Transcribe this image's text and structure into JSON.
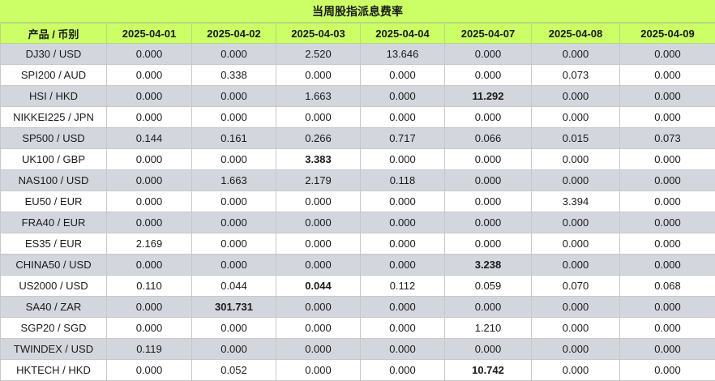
{
  "title": "当周股指派息费率",
  "header": {
    "product_label": "产品 / 币别",
    "dates": [
      "2025-04-01",
      "2025-04-02",
      "2025-04-03",
      "2025-04-04",
      "2025-04-07",
      "2025-04-08",
      "2025-04-09"
    ]
  },
  "rows": [
    {
      "product": "DJ30 / USD",
      "values": [
        "0.000",
        "0.000",
        "2.520",
        "13.646",
        "0.000",
        "0.000",
        "0.000"
      ],
      "bold": []
    },
    {
      "product": "SPI200 / AUD",
      "values": [
        "0.000",
        "0.338",
        "0.000",
        "0.000",
        "0.000",
        "0.073",
        "0.000"
      ],
      "bold": []
    },
    {
      "product": "HSI / HKD",
      "values": [
        "0.000",
        "0.000",
        "1.663",
        "0.000",
        "11.292",
        "0.000",
        "0.000"
      ],
      "bold": [
        4
      ]
    },
    {
      "product": "NIKKEI225 / JPN",
      "values": [
        "0.000",
        "0.000",
        "0.000",
        "0.000",
        "0.000",
        "0.000",
        "0.000"
      ],
      "bold": []
    },
    {
      "product": "SP500 / USD",
      "values": [
        "0.144",
        "0.161",
        "0.266",
        "0.717",
        "0.066",
        "0.015",
        "0.073"
      ],
      "bold": []
    },
    {
      "product": "UK100 / GBP",
      "values": [
        "0.000",
        "0.000",
        "3.383",
        "0.000",
        "0.000",
        "0.000",
        "0.000"
      ],
      "bold": [
        2
      ]
    },
    {
      "product": "NAS100 / USD",
      "values": [
        "0.000",
        "1.663",
        "2.179",
        "0.118",
        "0.000",
        "0.000",
        "0.000"
      ],
      "bold": []
    },
    {
      "product": "EU50 / EUR",
      "values": [
        "0.000",
        "0.000",
        "0.000",
        "0.000",
        "0.000",
        "3.394",
        "0.000"
      ],
      "bold": []
    },
    {
      "product": "FRA40 / EUR",
      "values": [
        "0.000",
        "0.000",
        "0.000",
        "0.000",
        "0.000",
        "0.000",
        "0.000"
      ],
      "bold": []
    },
    {
      "product": "ES35 / EUR",
      "values": [
        "2.169",
        "0.000",
        "0.000",
        "0.000",
        "0.000",
        "0.000",
        "0.000"
      ],
      "bold": []
    },
    {
      "product": "CHINA50 / USD",
      "values": [
        "0.000",
        "0.000",
        "0.000",
        "0.000",
        "3.238",
        "0.000",
        "0.000"
      ],
      "bold": [
        4
      ]
    },
    {
      "product": "US2000 / USD",
      "values": [
        "0.110",
        "0.044",
        "0.044",
        "0.112",
        "0.059",
        "0.070",
        "0.068"
      ],
      "bold": [
        2
      ]
    },
    {
      "product": "SA40 / ZAR",
      "values": [
        "0.000",
        "301.731",
        "0.000",
        "0.000",
        "0.000",
        "0.000",
        "0.000"
      ],
      "bold": [
        1
      ]
    },
    {
      "product": "SGP20 / SGD",
      "values": [
        "0.000",
        "0.000",
        "0.000",
        "0.000",
        "1.210",
        "0.000",
        "0.000"
      ],
      "bold": []
    },
    {
      "product": "TWINDEX / USD",
      "values": [
        "0.119",
        "0.000",
        "0.000",
        "0.000",
        "0.000",
        "0.000",
        "0.000"
      ],
      "bold": []
    },
    {
      "product": "HKTECH / HKD",
      "values": [
        "0.000",
        "0.052",
        "0.000",
        "0.000",
        "10.742",
        "0.000",
        "0.000"
      ],
      "bold": [
        4
      ]
    }
  ]
}
